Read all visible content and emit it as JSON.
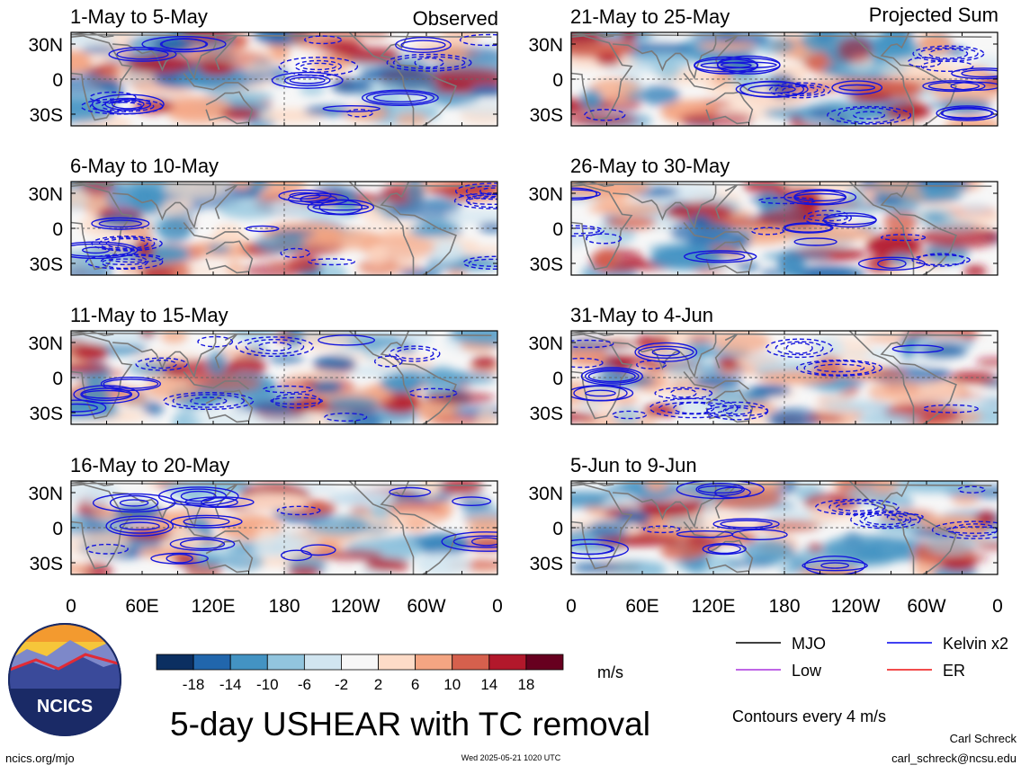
{
  "figure": {
    "title": "5-day USHEAR with TC removal",
    "units": "m/s",
    "contour_note": "Contours every 4 m/s",
    "column_headers": {
      "left": "Observed",
      "right": "Projected Sum"
    },
    "panels_left": [
      {
        "title": "1-May to 5-May"
      },
      {
        "title": "6-May to 10-May"
      },
      {
        "title": "11-May to 15-May"
      },
      {
        "title": "16-May to 20-May"
      }
    ],
    "panels_right": [
      {
        "title": "21-May to 25-May"
      },
      {
        "title": "26-May to 30-May"
      },
      {
        "title": "31-May to 4-Jun"
      },
      {
        "title": "5-Jun to 9-Jun"
      }
    ],
    "lat_labels": [
      "30N",
      "0",
      "30S"
    ],
    "lon_labels": [
      "0",
      "60E",
      "120E",
      "180",
      "120W",
      "60W",
      "0"
    ],
    "colorbar": {
      "labels": [
        "-18",
        "-14",
        "-10",
        "-6",
        "-2",
        "2",
        "6",
        "10",
        "14",
        "18"
      ],
      "colors": [
        "#0b2f61",
        "#2166ac",
        "#4393c3",
        "#92c5de",
        "#d1e5f0",
        "#f7f7f7",
        "#fddbc7",
        "#f4a582",
        "#d6604d",
        "#b2182b",
        "#67001f"
      ]
    },
    "legend": [
      {
        "label": "MJO",
        "color": "#000000"
      },
      {
        "label": "Kelvin x2",
        "color": "#0000ee"
      },
      {
        "label": "Low",
        "color": "#aa33dd"
      },
      {
        "label": "ER",
        "color": "#ee1111"
      }
    ],
    "logo_text": "NCICS",
    "footer": {
      "left": "ncics.org/mjo",
      "center": "Wed 2025-05-21 1020 UTC",
      "author": "Carl Schreck",
      "email": "carl_schreck@ncsu.edu"
    }
  }
}
